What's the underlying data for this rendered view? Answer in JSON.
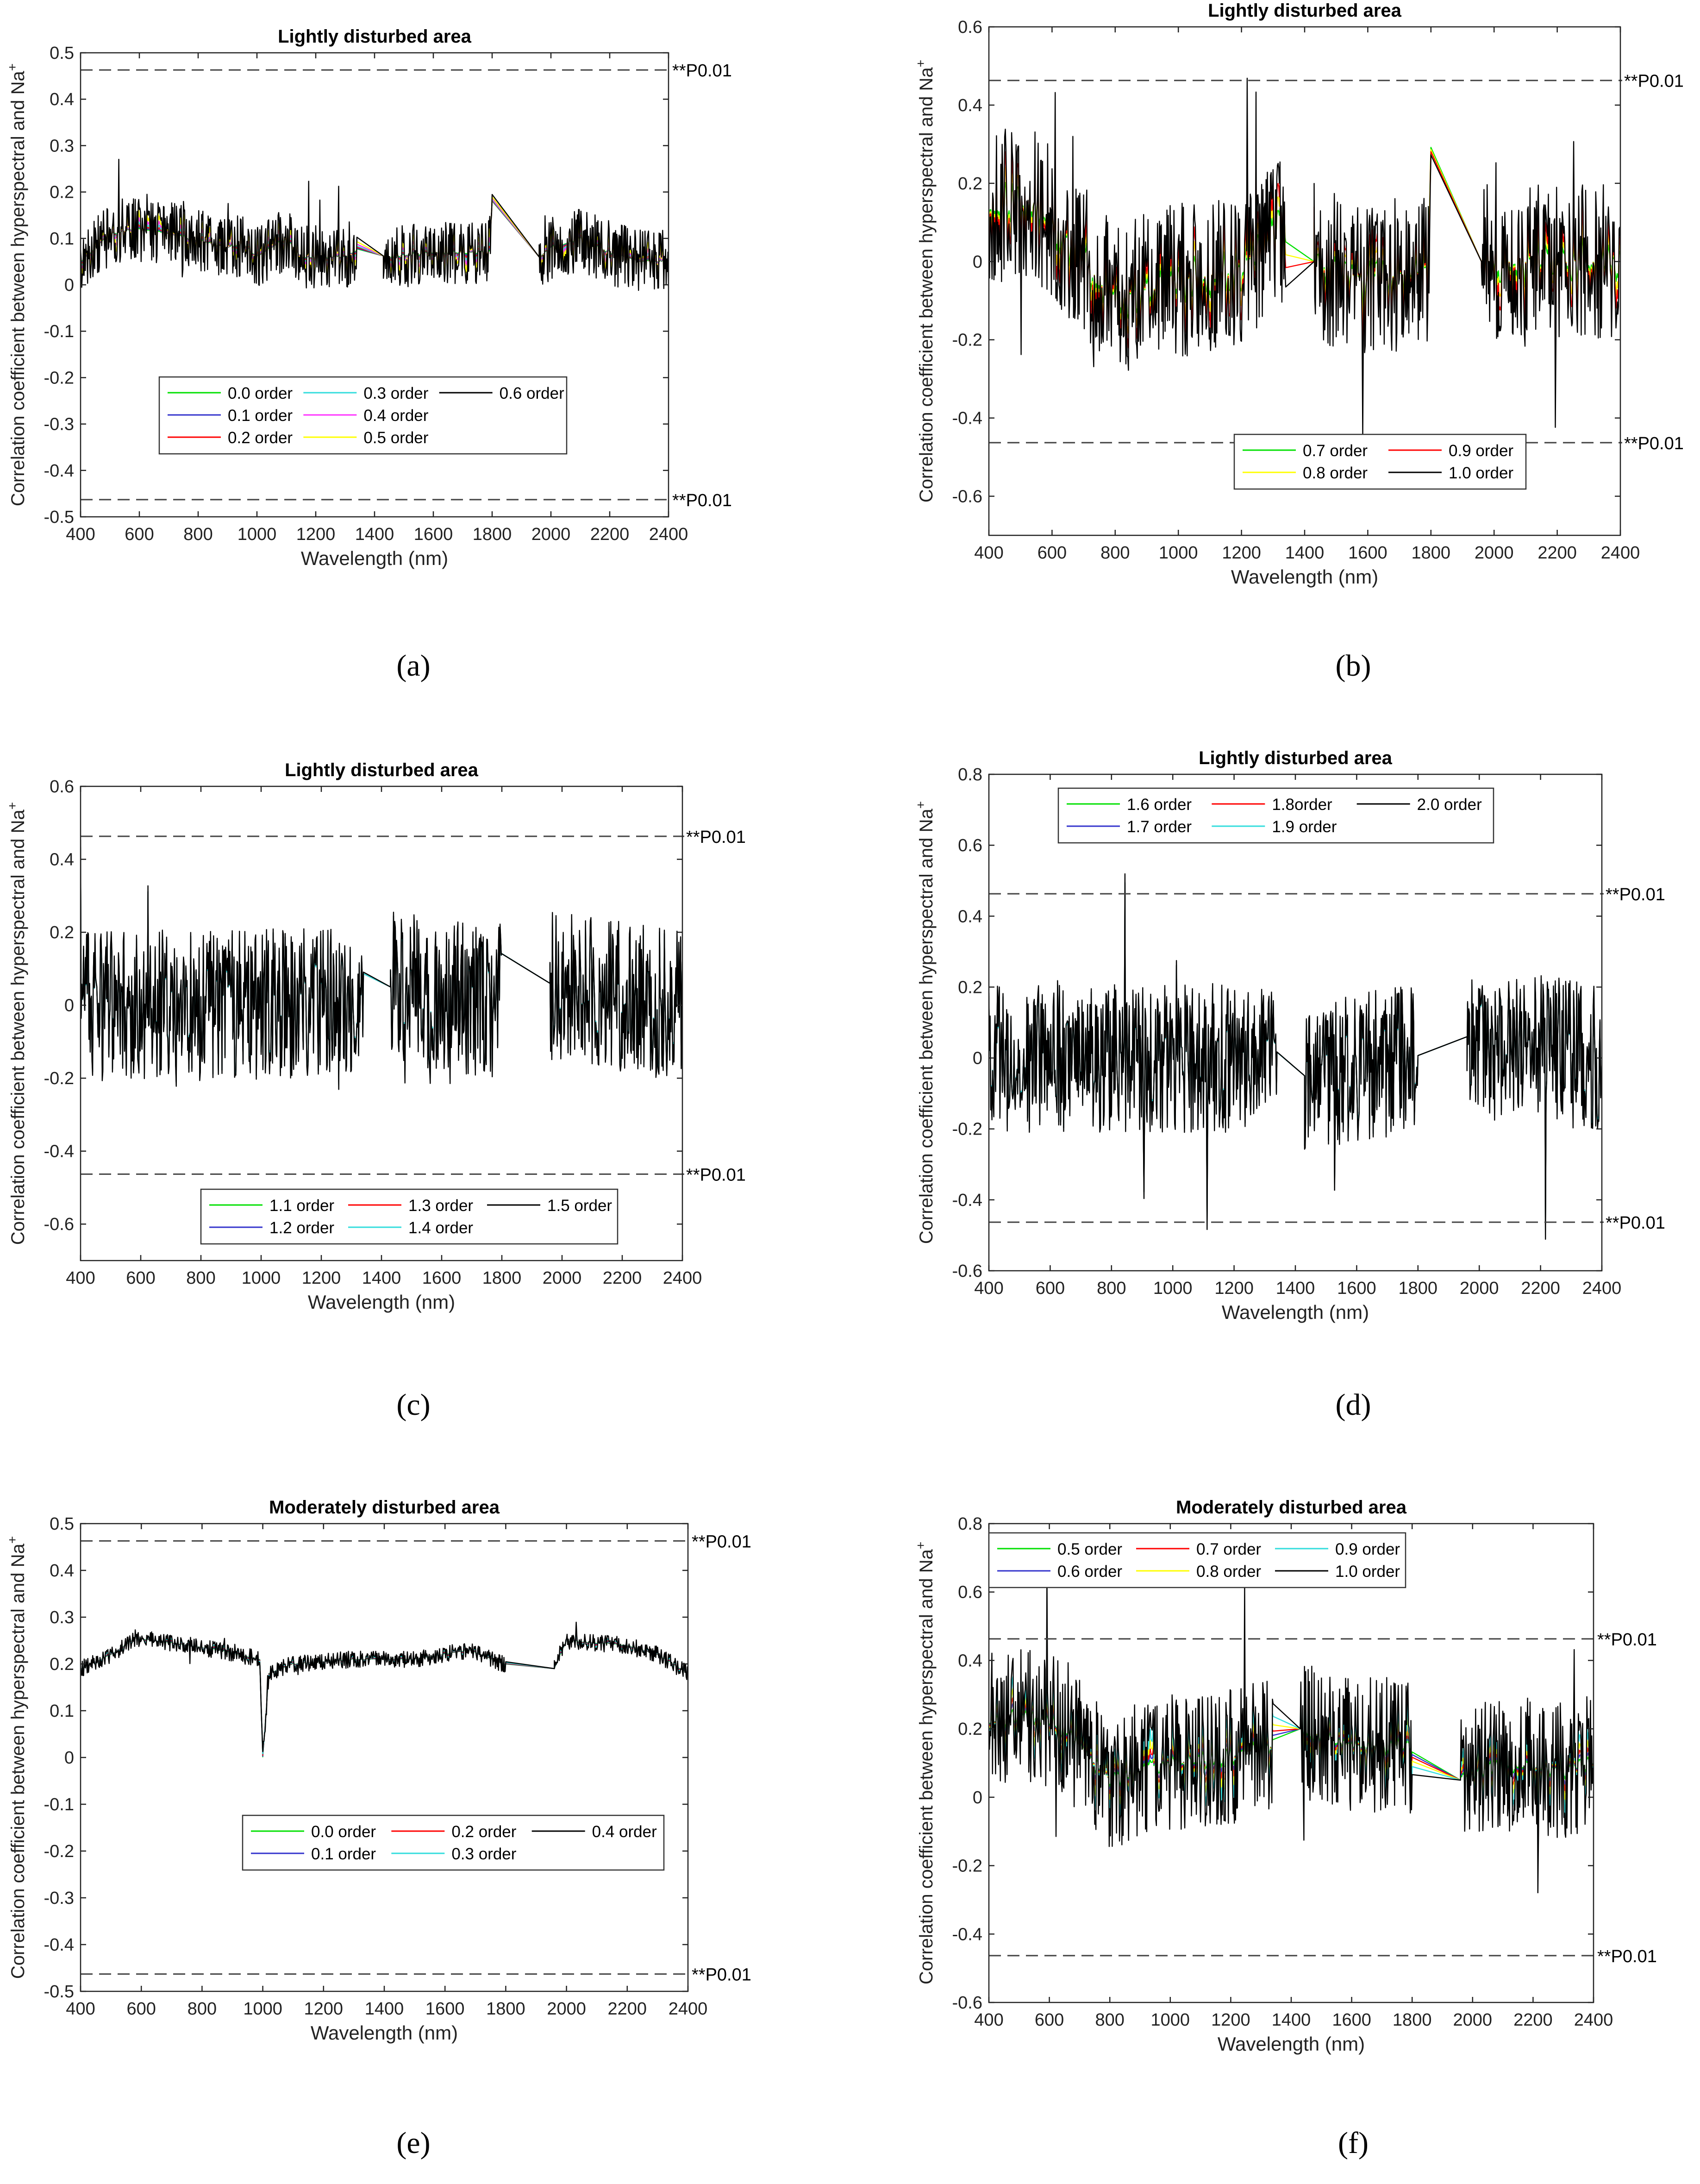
{
  "significance_label": "**P0.01",
  "significance_value": 0.463,
  "chart_data": [
    {
      "panel": "(a)",
      "type": "line",
      "title": "Lightly disturbed area",
      "xlabel": "Wavelength (nm)",
      "ylabel": "Correlation coefficient between hyperspectral and Na",
      "ylabel_sup": "+",
      "xlim": [
        400,
        2400
      ],
      "ylim": [
        -0.5,
        0.5
      ],
      "xticks": [
        "400",
        "600",
        "800",
        "1000",
        "1200",
        "1400",
        "1600",
        "1800",
        "2000",
        "2200",
        "2400"
      ],
      "yticks": [
        "-0.5",
        "-0.4",
        "-0.3",
        "-0.2",
        "-0.1",
        "0",
        "0.1",
        "0.2",
        "0.3",
        "0.4",
        "0.5"
      ],
      "legend_position": "lower-center",
      "legend_cols": 3,
      "series": [
        {
          "name": "0.0 order",
          "color": "#00e000",
          "noise": 0.004
        },
        {
          "name": "0.1 order",
          "color": "#3333cc",
          "noise": 0.008
        },
        {
          "name": "0.2 order",
          "color": "#ff0000",
          "noise": 0.013
        },
        {
          "name": "0.3 order",
          "color": "#33dddd",
          "noise": 0.02
        },
        {
          "name": "0.4 order",
          "color": "#ff33ff",
          "noise": 0.03
        },
        {
          "name": "0.5 order",
          "color": "#ffff00",
          "noise": 0.045
        },
        {
          "name": "0.6 order",
          "color": "#000000",
          "noise": 0.07
        }
      ],
      "base_profile": [
        [
          400,
          0.05
        ],
        [
          500,
          0.11
        ],
        [
          580,
          0.12
        ],
        [
          700,
          0.11
        ],
        [
          900,
          0.08
        ],
        [
          950,
          0.09
        ],
        [
          1000,
          0.06
        ],
        [
          1100,
          0.1
        ],
        [
          1150,
          0.06
        ],
        [
          1300,
          0.06
        ],
        [
          1350,
          0.08
        ],
        [
          1440,
          0.06
        ],
        [
          1600,
          0.07
        ],
        [
          1790,
          0.07
        ],
        [
          1800,
          0.18
        ],
        [
          1960,
          0.06
        ],
        [
          2000,
          0.08
        ],
        [
          2100,
          0.1
        ],
        [
          2200,
          0.07
        ],
        [
          2300,
          0.05
        ],
        [
          2400,
          0.05
        ]
      ],
      "gap_from": 1800,
      "gap_to": 1960,
      "gap2_from": 1340,
      "gap2_to": 1430,
      "significance_lines": [
        0.463,
        -0.463
      ]
    },
    {
      "panel": "(b)",
      "type": "line",
      "title": "Lightly disturbed area",
      "xlabel": "Wavelength (nm)",
      "ylabel": "Correlation coefficient between hyperspectral and Na",
      "ylabel_sup": "+",
      "xlim": [
        400,
        2400
      ],
      "ylim": [
        -0.7,
        0.6
      ],
      "xticks": [
        "400",
        "600",
        "800",
        "1000",
        "1200",
        "1400",
        "1600",
        "1800",
        "2000",
        "2200",
        "2400"
      ],
      "yticks": [
        "-0.6",
        "-0.4",
        "-0.2",
        "0",
        "0.2",
        "0.4",
        "0.6"
      ],
      "ytick_values": [
        -0.6,
        -0.4,
        -0.2,
        0,
        0.2,
        0.4,
        0.6
      ],
      "legend_position": "lower-right",
      "legend_cols": 2,
      "series": [
        {
          "name": "0.7 order",
          "color": "#00e000",
          "noise": 0.06
        },
        {
          "name": "0.8 order",
          "color": "#ffff00",
          "noise": 0.1
        },
        {
          "name": "0.9 order",
          "color": "#ff0000",
          "noise": 0.14
        },
        {
          "name": "1.0 order",
          "color": "#000000",
          "noise": 0.2
        }
      ],
      "base_profile": [
        [
          400,
          0.14
        ],
        [
          550,
          0.15
        ],
        [
          650,
          0.05
        ],
        [
          800,
          -0.1
        ],
        [
          1000,
          -0.05
        ],
        [
          1200,
          -0.02
        ],
        [
          1340,
          0.1
        ],
        [
          1430,
          0.0
        ],
        [
          1600,
          -0.05
        ],
        [
          1790,
          -0.02
        ],
        [
          1800,
          0.3
        ],
        [
          1960,
          0.0
        ],
        [
          2100,
          0.0
        ],
        [
          2300,
          0.0
        ],
        [
          2400,
          0.0
        ]
      ],
      "gap_from": 1800,
      "gap_to": 1960,
      "gap2_from": 1340,
      "gap2_to": 1430,
      "significance_lines": [
        0.463,
        -0.463
      ]
    },
    {
      "panel": "(c)",
      "type": "line",
      "title": "Lightly disturbed area",
      "xlabel": "Wavelength (nm)",
      "ylabel": "Correlation coefficient between hyperspectral and Na",
      "ylabel_sup": "+",
      "xlim": [
        400,
        2400
      ],
      "ylim": [
        -0.7,
        0.6
      ],
      "xticks": [
        "400",
        "600",
        "800",
        "1000",
        "1200",
        "1400",
        "1600",
        "1800",
        "2000",
        "2200",
        "2400"
      ],
      "yticks": [
        "-0.6",
        "-0.4",
        "-0.2",
        "0",
        "0.2",
        "0.4",
        "0.6"
      ],
      "ytick_values": [
        -0.6,
        -0.4,
        -0.2,
        0,
        0.2,
        0.4,
        0.6
      ],
      "legend_position": "lower-center",
      "legend_cols": 3,
      "series": [
        {
          "name": "1.1 order",
          "color": "#00e000",
          "noise": 0.2
        },
        {
          "name": "1.2 order",
          "color": "#3333cc",
          "noise": 0.2
        },
        {
          "name": "1.3 order",
          "color": "#ff0000",
          "noise": 0.2
        },
        {
          "name": "1.4 order",
          "color": "#33dddd",
          "noise": 0.2
        },
        {
          "name": "1.5 order",
          "color": "#000000",
          "noise": 0.21
        }
      ],
      "base_profile": [
        [
          400,
          0.0
        ],
        [
          1340,
          0.0
        ],
        [
          1430,
          0.05
        ],
        [
          1790,
          0.0
        ],
        [
          1800,
          0.15
        ],
        [
          1960,
          0.06
        ],
        [
          2400,
          0.0
        ]
      ],
      "gap_from": 1800,
      "gap_to": 1960,
      "gap2_from": 1340,
      "gap2_to": 1430,
      "significance_lines": [
        0.463,
        -0.463
      ]
    },
    {
      "panel": "(d)",
      "type": "line",
      "title": "Lightly disturbed area",
      "xlabel": "Wavelength (nm)",
      "ylabel": "Correlation coefficient between hyperspectral and Na",
      "ylabel_sup": "+",
      "xlim": [
        400,
        2400
      ],
      "ylim": [
        -0.6,
        0.8
      ],
      "xticks": [
        "400",
        "600",
        "800",
        "1000",
        "1200",
        "1400",
        "1600",
        "1800",
        "2000",
        "2200",
        "2400"
      ],
      "yticks": [
        "-0.6",
        "-0.4",
        "-0.2",
        "0",
        "0.2",
        "0.4",
        "0.6",
        "0.8"
      ],
      "ytick_values": [
        -0.6,
        -0.4,
        -0.2,
        0,
        0.2,
        0.4,
        0.6,
        0.8
      ],
      "legend_position": "top-center",
      "legend_cols": 3,
      "series": [
        {
          "name": "1.6 order",
          "color": "#00e000",
          "noise": 0.2
        },
        {
          "name": "1.7 order",
          "color": "#3333cc",
          "noise": 0.2
        },
        {
          "name": "1.8order",
          "color": "#ff0000",
          "noise": 0.2
        },
        {
          "name": "1.9 order",
          "color": "#33dddd",
          "noise": 0.2
        },
        {
          "name": "2.0 order",
          "color": "#000000",
          "noise": 0.21
        }
      ],
      "base_profile": [
        [
          400,
          0.0
        ],
        [
          1340,
          0.0
        ],
        [
          1430,
          -0.05
        ],
        [
          1790,
          0.0
        ],
        [
          1800,
          0.0
        ],
        [
          1960,
          0.06
        ],
        [
          2400,
          0.0
        ]
      ],
      "gap_from": 1800,
      "gap_to": 1960,
      "gap2_from": 1340,
      "gap2_to": 1430,
      "significance_lines": [
        0.463,
        -0.463
      ]
    },
    {
      "panel": "(e)",
      "type": "line",
      "title": "Moderately disturbed area",
      "xlabel": "Wavelength (nm)",
      "ylabel": "Correlation coefficient between hyperspectral and Na",
      "ylabel_sup": "+",
      "xlim": [
        400,
        2400
      ],
      "ylim": [
        -0.5,
        0.5
      ],
      "xticks": [
        "400",
        "600",
        "800",
        "1000",
        "1200",
        "1400",
        "1600",
        "1800",
        "2000",
        "2200",
        "2400"
      ],
      "yticks": [
        "-0.5",
        "-0.4",
        "-0.3",
        "-0.2",
        "-0.1",
        "0",
        "0.1",
        "0.2",
        "0.3",
        "0.4",
        "0.5"
      ],
      "legend_position": "lower-center",
      "legend_cols": 3,
      "series": [
        {
          "name": "0.0 order",
          "color": "#00e000",
          "noise": 0.002
        },
        {
          "name": "0.1 order",
          "color": "#3333cc",
          "noise": 0.004
        },
        {
          "name": "0.2 order",
          "color": "#ff0000",
          "noise": 0.007
        },
        {
          "name": "0.3 order",
          "color": "#33dddd",
          "noise": 0.011
        },
        {
          "name": "0.4 order",
          "color": "#000000",
          "noise": 0.018
        }
      ],
      "base_profile": [
        [
          400,
          0.19
        ],
        [
          500,
          0.22
        ],
        [
          580,
          0.255
        ],
        [
          700,
          0.245
        ],
        [
          850,
          0.23
        ],
        [
          990,
          0.21
        ],
        [
          1000,
          0.0
        ],
        [
          1020,
          0.18
        ],
        [
          1100,
          0.2
        ],
        [
          1300,
          0.21
        ],
        [
          1500,
          0.21
        ],
        [
          1680,
          0.23
        ],
        [
          1790,
          0.2
        ],
        [
          1960,
          0.19
        ],
        [
          2000,
          0.25
        ],
        [
          2200,
          0.24
        ],
        [
          2300,
          0.22
        ],
        [
          2400,
          0.18
        ]
      ],
      "gap_from": 1800,
      "gap_to": 1960,
      "gap2_from": 1340,
      "gap2_to": 1430,
      "significance_lines": [
        0.463,
        -0.463
      ]
    },
    {
      "panel": "(f)",
      "type": "line",
      "title": "Moderately disturbed area",
      "xlabel": "Wavelength (nm)",
      "ylabel": "Correlation coefficient between hyperspectral and Na",
      "ylabel_sup": "+",
      "xlim": [
        400,
        2400
      ],
      "ylim": [
        -0.6,
        0.8
      ],
      "xticks": [
        "400",
        "600",
        "800",
        "1000",
        "1200",
        "1400",
        "1600",
        "1800",
        "2000",
        "2200",
        "2400"
      ],
      "yticks": [
        "-0.6",
        "-0.4",
        "-0.2",
        "0",
        "0.2",
        "0.4",
        "0.6",
        "0.8"
      ],
      "ytick_values": [
        -0.6,
        -0.4,
        -0.2,
        0,
        0.2,
        0.4,
        0.6,
        0.8
      ],
      "legend_position": "top-left",
      "legend_cols": 3,
      "series": [
        {
          "name": "0.5 order",
          "color": "#00e000",
          "noise": 0.03
        },
        {
          "name": "0.6 order",
          "color": "#3333cc",
          "noise": 0.05
        },
        {
          "name": "0.7 order",
          "color": "#ff0000",
          "noise": 0.07
        },
        {
          "name": "0.8 order",
          "color": "#ffff00",
          "noise": 0.1
        },
        {
          "name": "0.9 order",
          "color": "#33dddd",
          "noise": 0.14
        },
        {
          "name": "1.0 order",
          "color": "#000000",
          "noise": 0.2
        }
      ],
      "base_profile": [
        [
          400,
          0.22
        ],
        [
          550,
          0.24
        ],
        [
          650,
          0.2
        ],
        [
          800,
          0.05
        ],
        [
          1000,
          0.1
        ],
        [
          1200,
          0.12
        ],
        [
          1340,
          0.15
        ],
        [
          1430,
          0.2
        ],
        [
          1600,
          0.15
        ],
        [
          1790,
          0.15
        ],
        [
          1960,
          0.05
        ],
        [
          2100,
          0.1
        ],
        [
          2300,
          0.08
        ],
        [
          2400,
          0.1
        ]
      ],
      "gap_from": 1800,
      "gap_to": 1960,
      "gap2_from": 1340,
      "gap2_to": 1430,
      "significance_lines": [
        0.463,
        -0.463
      ]
    }
  ]
}
